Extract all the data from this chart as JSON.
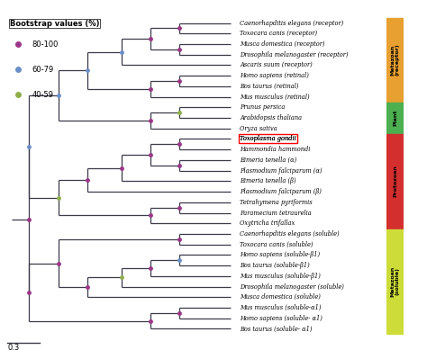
{
  "taxa": [
    "Caenorhapditis elegans (receptor)",
    "Toxocara canis (receptor)",
    "Musca domestica (receptor)",
    "Drosophila melanogaster (receptor)",
    "Ascaris suum (receptor)",
    "Homo sapiens (retinal)",
    "Bos taurus (retinal)",
    "Mus musculus (retinal)",
    "Prunus persica",
    "Arabidopsis thaliana",
    "Oryza sativa",
    "Toxoplasma gondii",
    "Hammondia hammondi",
    "Eimeria tenella (α)",
    "Plasmodium falciparum (α)",
    "Eimeria tenella (β)",
    "Plasmodium falciparum (β)",
    "Tetrahymena pyriformis",
    "Paramecium tetraurelia",
    "Oxytricha trifallax",
    "Caenorhapditis elegans (soluble)",
    "Toxocara canis (soluble)",
    "Homo sapiens (soluble-β1)",
    "Bos taurus (soluble-β1)",
    "Mus musculus (soluble-β1)",
    "Drosophila melanogaster (soluble)",
    "Musca domestica (soluble)",
    "Mus musculus (soluble-α1)",
    "Homo sapiens (soluble- α1)",
    "Bos taurus (soluble- α1)"
  ],
  "italic_parts": [
    [
      "Caenorhapditis elegans",
      " (receptor)"
    ],
    [
      "Toxocara canis",
      " (receptor)"
    ],
    [
      "Musca domestica",
      " (receptor)"
    ],
    [
      "Drosophila melanogaster",
      " (receptor)"
    ],
    [
      "Ascaris suum",
      " (receptor)"
    ],
    [
      "Homo sapiens",
      " (retinal)"
    ],
    [
      "Bos taurus",
      " (retinal)"
    ],
    [
      "Mus musculus",
      " (retinal)"
    ],
    [
      "Prunus persica",
      ""
    ],
    [
      "Arabidopsis thaliana",
      ""
    ],
    [
      "Oryza sativa",
      ""
    ],
    [
      "Toxoplasma gondii",
      ""
    ],
    [
      "Hammondia hammondi",
      ""
    ],
    [
      "Eimeria tenella",
      " (α)"
    ],
    [
      "Plasmodium falciparum",
      " (α)"
    ],
    [
      "Eimeria tenella",
      " (β)"
    ],
    [
      "Plasmodium falciparum",
      " (β)"
    ],
    [
      "Tetrahymena pyriformis",
      ""
    ],
    [
      "Paramecium tetraurelia",
      ""
    ],
    [
      "Oxytricha trifallax",
      ""
    ],
    [
      "Caenorhapditis elegans",
      " (soluble)"
    ],
    [
      "Toxocara canis",
      " (soluble)"
    ],
    [
      "Homo sapiens",
      " (soluble-β1)"
    ],
    [
      "Bos taurus",
      " (soluble-β1)"
    ],
    [
      "Mus musculus",
      " (soluble-β1)"
    ],
    [
      "Drosophila melanogaster",
      " (soluble)"
    ],
    [
      "Musca domestica",
      " (soluble)"
    ],
    [
      "Mus musculus",
      " (soluble-α1)"
    ],
    [
      "Homo sapiens",
      " (soluble- α1)"
    ],
    [
      "Bos taurus",
      " (soluble- α1)"
    ]
  ],
  "highlighted_taxon": 11,
  "group_colors": {
    "Metazoan\n(receptor)": "#E8A030",
    "Plant": "#4CAF50",
    "Protozoan": "#D32F2F",
    "Metazoan\n(soluble)": "#CDDC39"
  },
  "group_order": [
    "Metazoan\n(receptor)",
    "Plant",
    "Protozoan",
    "Metazoan\n(soluble)"
  ],
  "group_ranges": {
    "Metazoan\n(receptor)": [
      0,
      7
    ],
    "Plant": [
      8,
      10
    ],
    "Protozoan": [
      11,
      19
    ],
    "Metazoan\n(soluble)": [
      20,
      29
    ]
  },
  "bootstrap_colors": {
    "80-100": "#9C3587",
    "60-79": "#6B8FC7",
    "40-59": "#8FAF4A"
  },
  "line_color": "#3A3A4A",
  "bg_color": "#FFFFFF"
}
